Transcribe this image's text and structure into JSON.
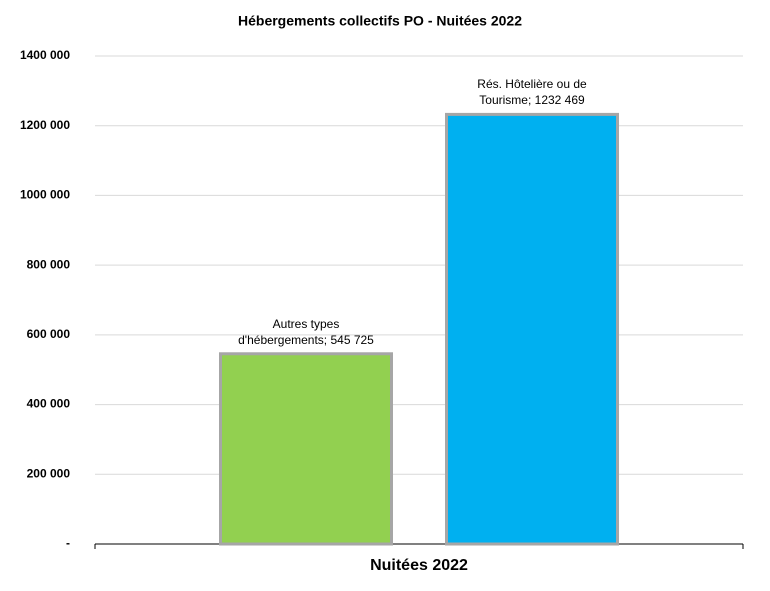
{
  "chart_data": {
    "type": "bar",
    "title": "Hébergements collectifs PO - Nuitées 2022",
    "categories": [
      "Nuitées 2022"
    ],
    "series": [
      {
        "name": "Autres types d'hébergements",
        "color": "#92d050",
        "values": [
          545725
        ],
        "value_labels": [
          "Autres types d'hébergements;  545 725"
        ]
      },
      {
        "name": "Rés. Hôtelière ou de Tourisme",
        "color": "#00b0f0",
        "values": [
          1232469
        ],
        "value_labels": [
          "Rés. Hôtelière ou de Tourisme;  1232 469"
        ]
      }
    ],
    "ylim": [
      0,
      1400000
    ],
    "yticks": [
      {
        "value": 0,
        "label": "-"
      },
      {
        "value": 200000,
        "label": "200 000"
      },
      {
        "value": 400000,
        "label": "400 000"
      },
      {
        "value": 600000,
        "label": "600 000"
      },
      {
        "value": 800000,
        "label": "800 000"
      },
      {
        "value": 1000000,
        "label": "1000 000"
      },
      {
        "value": 1200000,
        "label": "1200 000"
      },
      {
        "value": 1400000,
        "label": "1400 000"
      }
    ],
    "grid": true
  }
}
